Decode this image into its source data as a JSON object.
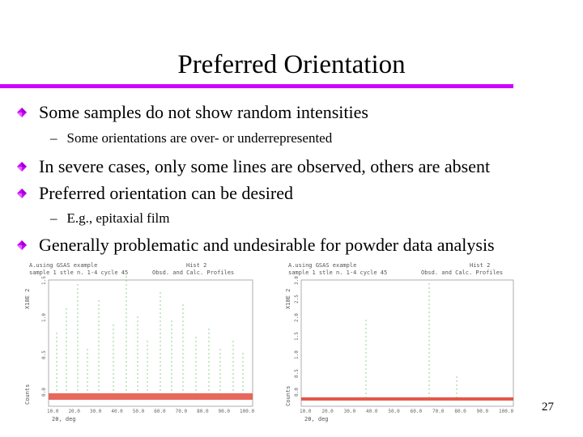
{
  "slide": {
    "title": "Preferred Orientation",
    "accent_color": "#cc00ff",
    "page_number": "27"
  },
  "bullets": [
    {
      "text": "Some samples do not show random intensities",
      "icon": "diamond-bullet-icon"
    },
    {
      "text": "In severe cases, only some lines are observed, others are absent",
      "icon": "diamond-bullet-icon"
    },
    {
      "text": "Preferred orientation can be desired",
      "icon": "diamond-bullet-icon"
    },
    {
      "text": "Generally problematic and undesirable for powder data analysis",
      "icon": "diamond-bullet-icon"
    }
  ],
  "subbullets": [
    {
      "dash": "–",
      "text": "Some orientations are over- or underrepresented"
    },
    {
      "dash": "–",
      "text": "E.g., epitaxial film"
    }
  ],
  "plots": [
    {
      "header_left": "A.using GSAS example",
      "header_left2": "sample 1 stle n. 1-4 cycle  45",
      "header_mid": "Obsd. and Calc. Profiles",
      "header_right": "Hist  2",
      "ylabel": "X10E 2",
      "ylabel2": "Counts",
      "xlabel": "2θ, deg",
      "xticks": [
        "10.0",
        "20.0",
        "30.0",
        "40.0",
        "50.0",
        "60.0",
        "70.0",
        "80.0",
        "90.0",
        "100.0"
      ],
      "yticks": [
        "0.0",
        "0.5",
        "1.0",
        "1.5"
      ]
    },
    {
      "header_left": "A.using GSAS example",
      "header_left2": "sample 1 stle n. 1-4 cycle  45",
      "header_mid": "Obsd. and Calc. Profiles",
      "header_right": "Hist  2",
      "ylabel": "X10E 2",
      "ylabel2": "Counts",
      "xlabel": "2θ, deg",
      "xticks": [
        "10.0",
        "20.0",
        "30.0",
        "40.0",
        "50.0",
        "60.0",
        "70.0",
        "80.0",
        "90.0",
        "100.0"
      ],
      "yticks": [
        "0.0",
        "0.5",
        "1.0",
        "1.5",
        "2.0",
        "2.5",
        "3.0"
      ]
    }
  ]
}
